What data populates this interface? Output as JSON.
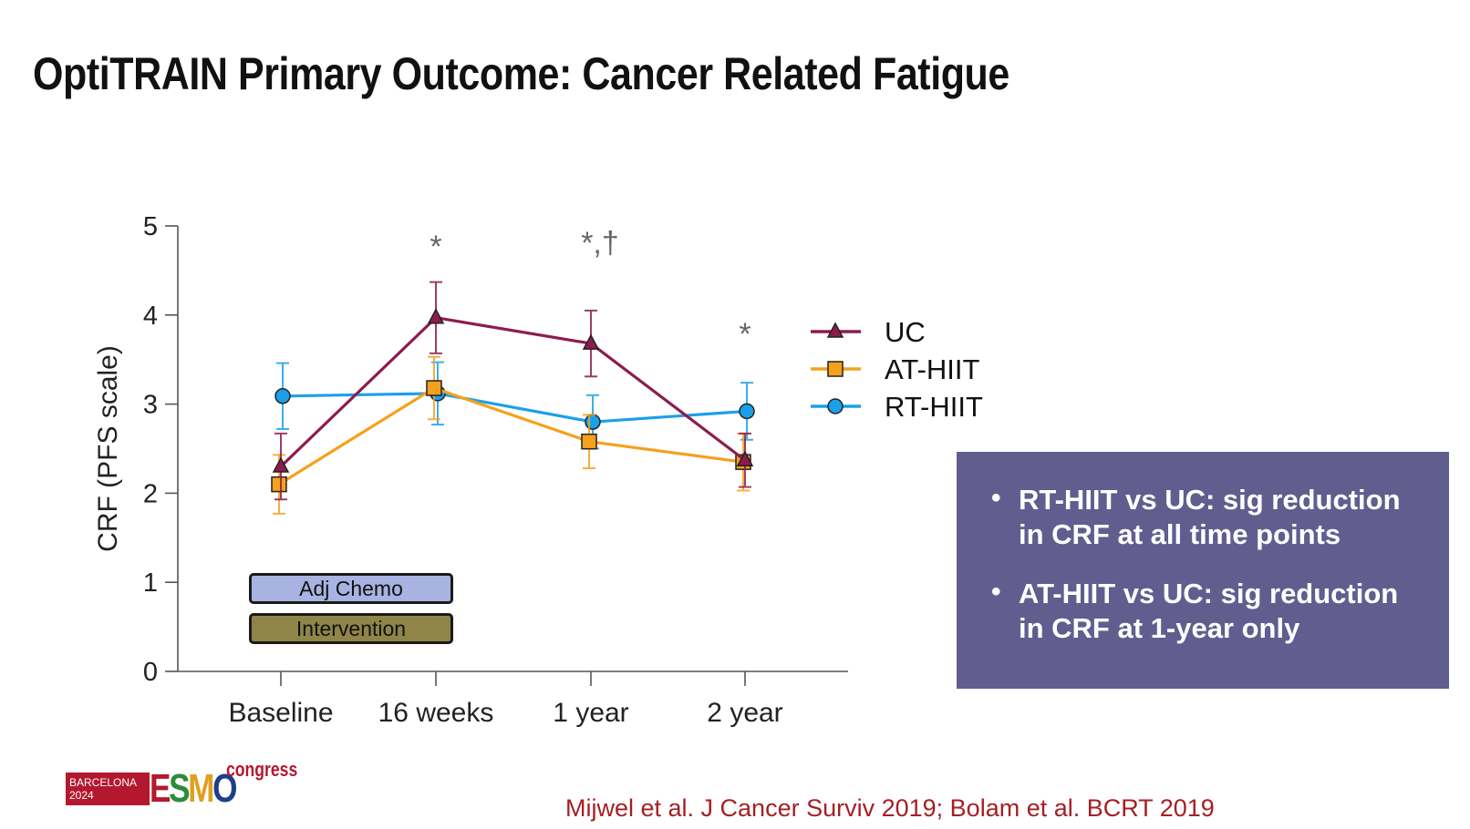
{
  "slide": {
    "title": "OptiTRAIN Primary Outcome: Cancer Related Fatigue",
    "citation": "Mijwel et al. J Cancer Surviv 2019; Bolam et al. BCRT 2019",
    "bullets": [
      "RT-HIIT vs UC: sig reduction in CRF at all time points",
      "AT-HIIT vs UC: sig reduction in CRF at 1-year only"
    ],
    "bullet_glyph": "•",
    "phases": {
      "adj_chemo": "Adj Chemo",
      "intervention": "Intervention"
    },
    "logo": {
      "city": "BARCELONA",
      "year": "2024",
      "brand_letters": [
        "E",
        "S",
        "M",
        "O"
      ],
      "suffix": "congress"
    },
    "colors": {
      "accent_box": "#625d8f",
      "citation": "#a51f24",
      "adj_chemo": "#a9b3e2",
      "intervention": "#8f8548"
    }
  },
  "chart_data": {
    "type": "line",
    "title": "",
    "xlabel": "",
    "ylabel": "CRF (PFS scale)",
    "categories": [
      "Baseline",
      "16 weeks",
      "1 year",
      "2 year"
    ],
    "ylim": [
      0,
      5
    ],
    "yticks": [
      0,
      1,
      2,
      3,
      4,
      5
    ],
    "grid": false,
    "legend_position": "right",
    "series": [
      {
        "name": "UC",
        "color": "#8c1c4e",
        "marker": "triangle",
        "values": [
          2.3,
          3.97,
          3.68,
          2.37
        ],
        "error": [
          0.37,
          0.4,
          0.37,
          0.3
        ]
      },
      {
        "name": "AT-HIIT",
        "color": "#f5a11c",
        "marker": "square",
        "values": [
          2.1,
          3.18,
          2.58,
          2.35
        ],
        "error": [
          0.33,
          0.35,
          0.3,
          0.32
        ]
      },
      {
        "name": "RT-HIIT",
        "color": "#1aa0e8",
        "marker": "circle",
        "values": [
          3.09,
          3.12,
          2.8,
          2.92
        ],
        "error": [
          0.37,
          0.35,
          0.3,
          0.32
        ]
      }
    ],
    "annotations": [
      {
        "category": "16 weeks",
        "text": "*"
      },
      {
        "category": "1 year",
        "text": "*,†"
      },
      {
        "category": "2 year",
        "text": "*"
      }
    ]
  }
}
